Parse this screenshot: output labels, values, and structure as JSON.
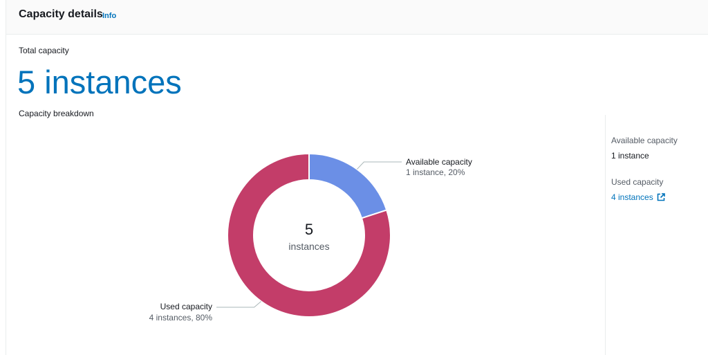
{
  "header": {
    "title": "Capacity details",
    "info_label": "Info"
  },
  "total": {
    "label": "Total capacity",
    "value": "5 instances"
  },
  "breakdown": {
    "label": "Capacity breakdown"
  },
  "chart_data": {
    "type": "pie",
    "donut": true,
    "center_value": "5",
    "center_label": "instances",
    "slices": [
      {
        "name": "Available capacity",
        "detail": "1 instance, 20%",
        "value": 1,
        "percent": 20,
        "color": "#6b8fe6"
      },
      {
        "name": "Used capacity",
        "detail": "4 instances, 80%",
        "value": 4,
        "percent": 80,
        "color": "#c33d69"
      }
    ]
  },
  "side": {
    "available_label": "Available capacity",
    "available_value": "1 instance",
    "used_label": "Used capacity",
    "used_value": "4 instances",
    "used_icon": "external-link-icon"
  },
  "colors": {
    "link": "#0073bb",
    "available": "#6b8fe6",
    "used": "#c33d69"
  }
}
